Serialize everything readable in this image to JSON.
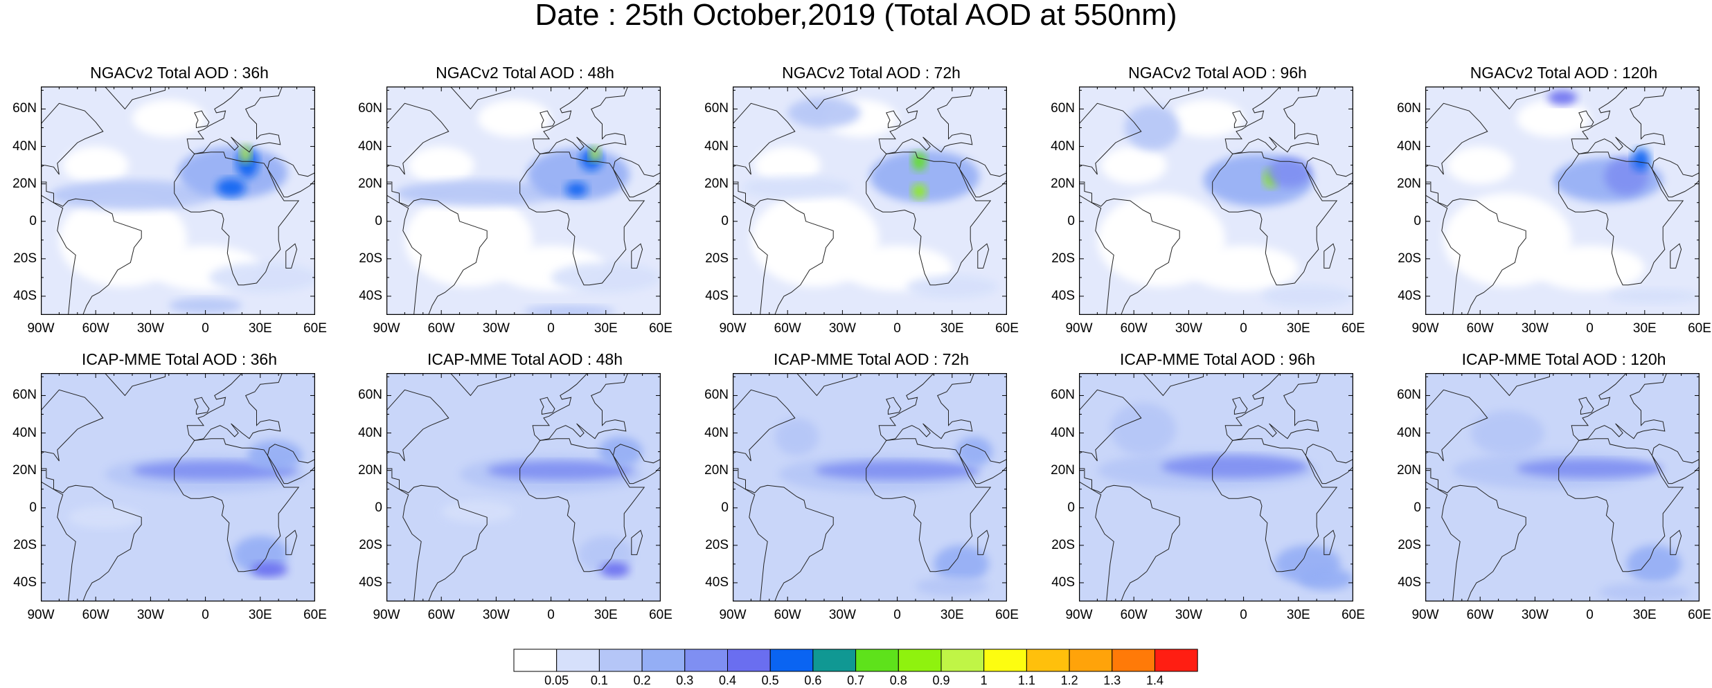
{
  "title": "Date : 25th October,2019 (Total AOD at 550nm)",
  "panels": [
    {
      "model": "NGACv2",
      "title": "NGACv2 Total AOD : 36h",
      "lead": "36h",
      "row": 0,
      "col": 0
    },
    {
      "model": "NGACv2",
      "title": "NGACv2 Total AOD : 48h",
      "lead": "48h",
      "row": 0,
      "col": 1
    },
    {
      "model": "NGACv2",
      "title": "NGACv2 Total AOD : 72h",
      "lead": "72h",
      "row": 0,
      "col": 2
    },
    {
      "model": "NGACv2",
      "title": "NGACv2 Total AOD : 96h",
      "lead": "96h",
      "row": 0,
      "col": 3
    },
    {
      "model": "NGACv2",
      "title": "NGACv2 Total AOD : 120h",
      "lead": "120h",
      "row": 0,
      "col": 4
    },
    {
      "model": "ICAP-MME",
      "title": "ICAP-MME Total AOD : 36h",
      "lead": "36h",
      "row": 1,
      "col": 0
    },
    {
      "model": "ICAP-MME",
      "title": "ICAP-MME Total AOD : 48h",
      "lead": "48h",
      "row": 1,
      "col": 1
    },
    {
      "model": "ICAP-MME",
      "title": "ICAP-MME Total AOD : 72h",
      "lead": "72h",
      "row": 1,
      "col": 2
    },
    {
      "model": "ICAP-MME",
      "title": "ICAP-MME Total AOD : 96h",
      "lead": "96h",
      "row": 1,
      "col": 3
    },
    {
      "model": "ICAP-MME",
      "title": "ICAP-MME Total AOD : 120h",
      "lead": "120h",
      "row": 1,
      "col": 4
    }
  ],
  "map_extent": {
    "lon_range": [
      -90,
      60
    ],
    "lat_range": [
      -50,
      72
    ]
  },
  "lat_ticks": [
    {
      "value": 60,
      "label": "60N"
    },
    {
      "value": 40,
      "label": "40N"
    },
    {
      "value": 20,
      "label": "20N"
    },
    {
      "value": 0,
      "label": "0"
    },
    {
      "value": -20,
      "label": "20S"
    },
    {
      "value": -40,
      "label": "40S"
    }
  ],
  "lon_ticks": [
    {
      "value": -90,
      "label": "90W"
    },
    {
      "value": -60,
      "label": "60W"
    },
    {
      "value": -30,
      "label": "30W"
    },
    {
      "value": 0,
      "label": "0"
    },
    {
      "value": 30,
      "label": "30E"
    },
    {
      "value": 60,
      "label": "60E"
    }
  ],
  "colorbar": {
    "levels": [
      "0.05",
      "0.1",
      "0.2",
      "0.3",
      "0.4",
      "0.5",
      "0.6",
      "0.7",
      "0.8",
      "0.9",
      "1",
      "1.1",
      "1.2",
      "1.3",
      "1.4"
    ],
    "colors": [
      "#ffffff",
      "#d6e0fb",
      "#b5c6f7",
      "#94aef5",
      "#7f8ff2",
      "#6a6ef0",
      "#0a64f2",
      "#109893",
      "#5ee21b",
      "#8ff20e",
      "#c0f546",
      "#fdfd10",
      "#ffc00c",
      "#ffa30a",
      "#ff7a08",
      "#ff1e12"
    ]
  }
}
